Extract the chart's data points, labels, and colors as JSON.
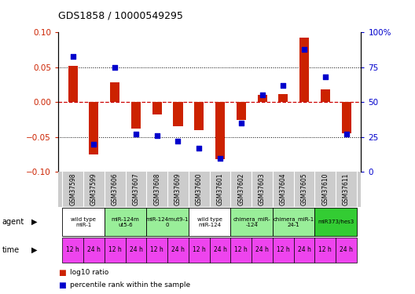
{
  "title": "GDS1858 / 10000549295",
  "samples": [
    "GSM37598",
    "GSM37599",
    "GSM37606",
    "GSM37607",
    "GSM37608",
    "GSM37609",
    "GSM37600",
    "GSM37601",
    "GSM37602",
    "GSM37603",
    "GSM37604",
    "GSM37605",
    "GSM37610",
    "GSM37611"
  ],
  "log10_ratio": [
    0.052,
    -0.075,
    0.028,
    -0.038,
    -0.018,
    -0.035,
    -0.04,
    -0.082,
    -0.025,
    0.01,
    0.012,
    0.092,
    0.018,
    -0.045
  ],
  "percentile_rank": [
    83,
    20,
    75,
    27,
    26,
    22,
    17,
    10,
    35,
    55,
    62,
    88,
    68,
    27
  ],
  "ylim_left": [
    -0.1,
    0.1
  ],
  "ylim_right": [
    0,
    100
  ],
  "yticks_left": [
    -0.1,
    -0.05,
    0,
    0.05,
    0.1
  ],
  "yticks_right": [
    0,
    25,
    50,
    75,
    100
  ],
  "bar_color": "#cc2200",
  "dot_color": "#0000cc",
  "agent_groups": [
    {
      "label": "wild type\nmiR-1",
      "cols": [
        0,
        1
      ],
      "color": "#ffffff"
    },
    {
      "label": "miR-124m\nut5-6",
      "cols": [
        2,
        3
      ],
      "color": "#99ee99"
    },
    {
      "label": "miR-124mut9-1\n0",
      "cols": [
        4,
        5
      ],
      "color": "#99ee99"
    },
    {
      "label": "wild type\nmiR-124",
      "cols": [
        6,
        7
      ],
      "color": "#ffffff"
    },
    {
      "label": "chimera_miR-\n-124",
      "cols": [
        8,
        9
      ],
      "color": "#99ee99"
    },
    {
      "label": "chimera_miR-1\n24-1",
      "cols": [
        10,
        11
      ],
      "color": "#99ee99"
    },
    {
      "label": "miR373/hes3",
      "cols": [
        12,
        13
      ],
      "color": "#33cc33"
    }
  ],
  "time_labels": [
    "12 h",
    "24 h",
    "12 h",
    "24 h",
    "12 h",
    "24 h",
    "12 h",
    "24 h",
    "12 h",
    "24 h",
    "12 h",
    "24 h",
    "12 h",
    "24 h"
  ],
  "time_color": "#ee44ee",
  "hline_color": "#cc0000",
  "dotline_color": "#000000",
  "plot_bg": "#ffffff",
  "tick_label_color_left": "#cc2200",
  "tick_label_color_right": "#0000cc",
  "sample_bg": "#cccccc"
}
